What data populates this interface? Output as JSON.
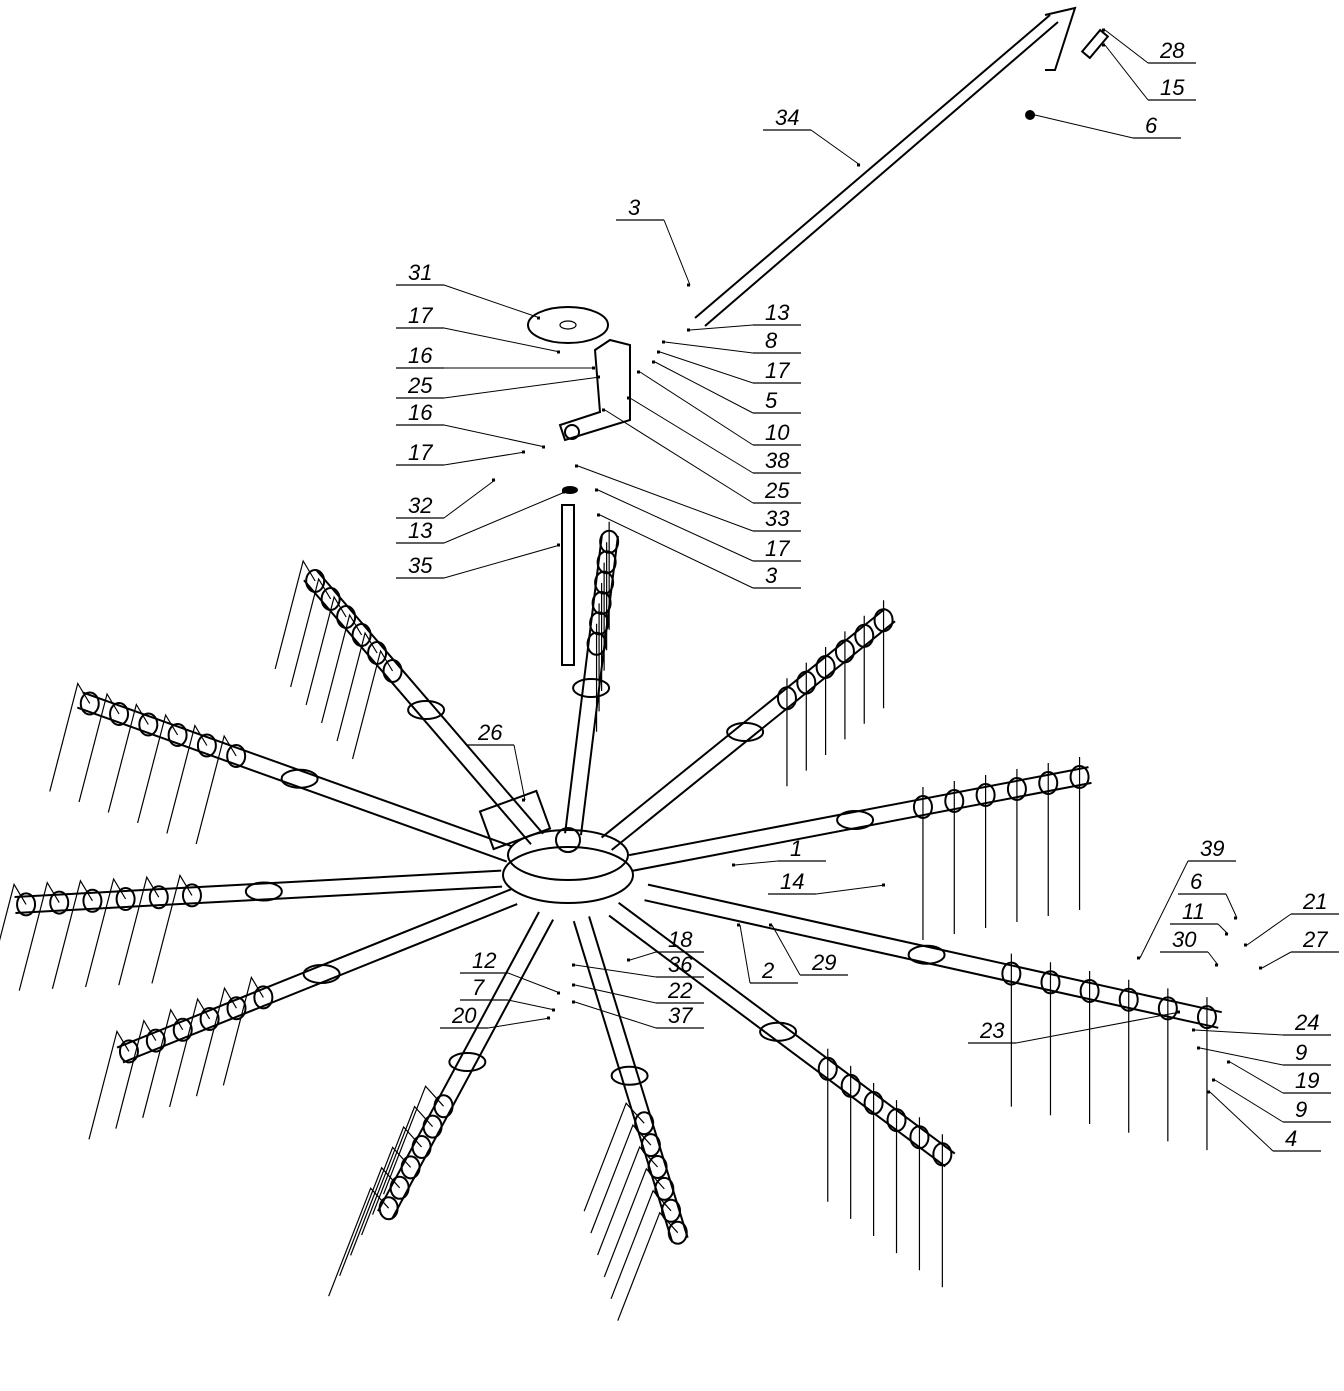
{
  "callouts": [
    "28",
    "15",
    "6",
    "34",
    "3",
    "31",
    "17",
    "13",
    "8",
    "16",
    "17",
    "25",
    "5",
    "16",
    "10",
    "17",
    "38",
    "25",
    "32",
    "13",
    "33",
    "17",
    "35",
    "3",
    "26",
    "1",
    "39",
    "14",
    "6",
    "11",
    "21",
    "30",
    "27",
    "18",
    "36",
    "12",
    "22",
    "2",
    "29",
    "7",
    "37",
    "20",
    "23",
    "24",
    "9",
    "19",
    "9",
    "4"
  ]
}
